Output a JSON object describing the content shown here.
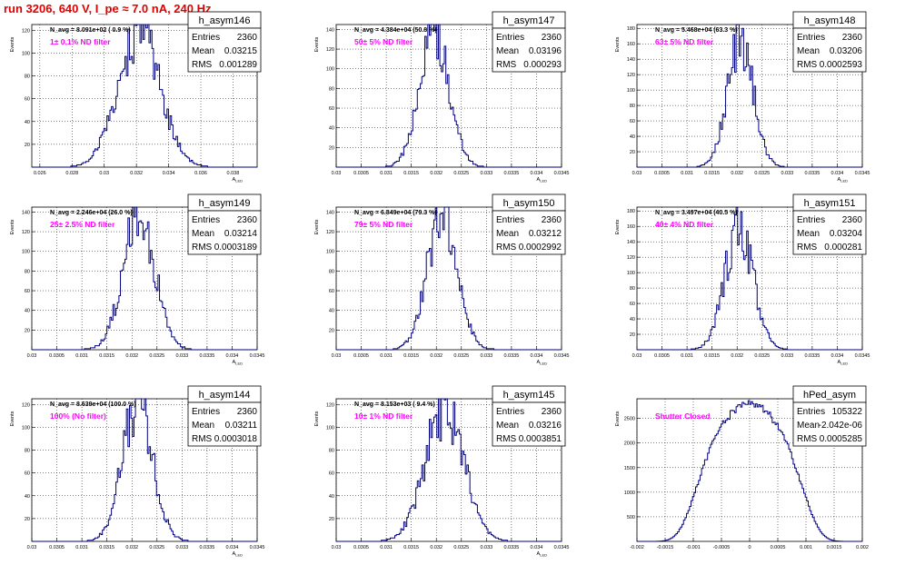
{
  "page_title": "run 3206,   640 V, I_pe ≈ 7.0 nA, 240 Hz",
  "colors": {
    "histogram": "#00007f",
    "annotation": "#ff00ff",
    "title": "#e00000",
    "grid": "#000000"
  },
  "chart_data": [
    {
      "type": "histogram",
      "name": "h_asym146",
      "navg": "N_avg = 8.091e+02 ( 0.9 %)",
      "filter": "1± 0.1% ND filter",
      "stats": {
        "Entries": "2360",
        "Mean": "0.03215",
        "RMS": "0.001289"
      },
      "ylabel": "Events",
      "xlabel": "A_LED",
      "xlim": [
        0.0255,
        0.0395
      ],
      "xticks": [
        "0.026",
        "0.028",
        "0.03",
        "0.032",
        "0.034",
        "0.036",
        "0.038"
      ],
      "ylim": [
        0,
        125
      ],
      "yticks": [
        "20",
        "40",
        "60",
        "80",
        "100",
        "120"
      ],
      "peak": 120,
      "mean": 0.03215,
      "rms": 0.001289,
      "seed": 146
    },
    {
      "type": "histogram",
      "name": "h_asym147",
      "navg": "N_avg = 4.384e+04 (50.8 %)",
      "filter": "50± 5% ND filter",
      "stats": {
        "Entries": "2360",
        "Mean": "0.03196",
        "RMS": "0.000293"
      },
      "ylabel": "Events",
      "xlabel": "A_LED",
      "xlim": [
        0.03,
        0.0345
      ],
      "xticks": [
        "0.03",
        "0.0305",
        "0.031",
        "0.0315",
        "0.032",
        "0.0325",
        "0.033",
        "0.0335",
        "0.034",
        "0.0345"
      ],
      "ylim": [
        0,
        145
      ],
      "yticks": [
        "20",
        "40",
        "60",
        "80",
        "100",
        "120",
        "140"
      ],
      "peak": 138,
      "mean": 0.03196,
      "rms": 0.000293,
      "seed": 147
    },
    {
      "type": "histogram",
      "name": "h_asym148",
      "navg": "N_avg = 5.468e+04 (63.3 %)",
      "filter": "63± 5% ND filter",
      "stats": {
        "Entries": "2360",
        "Mean": "0.03206",
        "RMS": "0.0002593"
      },
      "ylabel": "Events",
      "xlabel": "A_LED",
      "xlim": [
        0.03,
        0.0345
      ],
      "xticks": [
        "0.03",
        "0.0305",
        "0.031",
        "0.0315",
        "0.032",
        "0.0325",
        "0.033",
        "0.0335",
        "0.034",
        "0.0345"
      ],
      "ylim": [
        0,
        185
      ],
      "yticks": [
        "20",
        "40",
        "60",
        "80",
        "100",
        "120",
        "140",
        "160",
        "180"
      ],
      "peak": 165,
      "mean": 0.03206,
      "rms": 0.0002593,
      "seed": 148
    },
    {
      "type": "histogram",
      "name": "h_asym149",
      "navg": "N_avg = 2.246e+04 (26.0 %)",
      "filter": "25± 2.5% ND filter",
      "stats": {
        "Entries": "2360",
        "Mean": "0.03214",
        "RMS": "0.0003189"
      },
      "ylabel": "Events",
      "xlabel": "A_LED",
      "xlim": [
        0.03,
        0.0345
      ],
      "xticks": [
        "0.03",
        "0.0305",
        "0.031",
        "0.0315",
        "0.032",
        "0.0325",
        "0.033",
        "0.0335",
        "0.034",
        "0.0345"
      ],
      "ylim": [
        0,
        145
      ],
      "yticks": [
        "20",
        "40",
        "60",
        "80",
        "100",
        "120",
        "140"
      ],
      "peak": 135,
      "mean": 0.03214,
      "rms": 0.0003189,
      "seed": 149
    },
    {
      "type": "histogram",
      "name": "h_asym150",
      "navg": "N_avg = 6.849e+04 (79.3 %)",
      "filter": "79± 5% ND filter",
      "stats": {
        "Entries": "2360",
        "Mean": "0.03212",
        "RMS": "0.0002992"
      },
      "ylabel": "Events",
      "xlabel": "A_LED",
      "xlim": [
        0.03,
        0.0345
      ],
      "xticks": [
        "0.03",
        "0.0305",
        "0.031",
        "0.0315",
        "0.032",
        "0.0325",
        "0.033",
        "0.0335",
        "0.034",
        "0.0345"
      ],
      "ylim": [
        0,
        145
      ],
      "yticks": [
        "20",
        "40",
        "60",
        "80",
        "100",
        "120",
        "140"
      ],
      "peak": 140,
      "mean": 0.03212,
      "rms": 0.0002992,
      "seed": 150
    },
    {
      "type": "histogram",
      "name": "h_asym151",
      "navg": "N_avg = 3.497e+04 (40.5 %)",
      "filter": "40± 4% ND filter",
      "stats": {
        "Entries": "2360",
        "Mean": "0.03204",
        "RMS": "0.000281"
      },
      "ylabel": "Events",
      "xlabel": "A_LED",
      "xlim": [
        0.03,
        0.0345
      ],
      "xticks": [
        "0.03",
        "0.0305",
        "0.031",
        "0.0315",
        "0.032",
        "0.0325",
        "0.033",
        "0.0335",
        "0.034",
        "0.0345"
      ],
      "ylim": [
        0,
        185
      ],
      "yticks": [
        "20",
        "40",
        "60",
        "80",
        "100",
        "120",
        "140",
        "160",
        "180"
      ],
      "peak": 160,
      "mean": 0.03204,
      "rms": 0.000281,
      "seed": 151
    },
    {
      "type": "histogram",
      "name": "h_asym144",
      "navg": "N_avg = 8.639e+04 (100.0 %)",
      "filter": "100% (No filter)",
      "stats": {
        "Entries": "2360",
        "Mean": "0.03211",
        "RMS": "0.0003018"
      },
      "ylabel": "Events",
      "xlabel": "A_LED",
      "xlim": [
        0.03,
        0.0345
      ],
      "xticks": [
        "0.03",
        "0.0305",
        "0.031",
        "0.0315",
        "0.032",
        "0.0325",
        "0.033",
        "0.0335",
        "0.034",
        "0.0345"
      ],
      "ylim": [
        0,
        125
      ],
      "yticks": [
        "20",
        "40",
        "60",
        "80",
        "100",
        "120"
      ],
      "peak": 120,
      "mean": 0.03211,
      "rms": 0.0003018,
      "seed": 144
    },
    {
      "type": "histogram",
      "name": "h_asym145",
      "navg": "N_avg = 8.153e+03 ( 9.4 %)",
      "filter": "10± 1% ND filter",
      "stats": {
        "Entries": "2360",
        "Mean": "0.03216",
        "RMS": "0.0003851"
      },
      "ylabel": "Events",
      "xlabel": "A_LED",
      "xlim": [
        0.03,
        0.0345
      ],
      "xticks": [
        "0.03",
        "0.0305",
        "0.031",
        "0.0315",
        "0.032",
        "0.0325",
        "0.033",
        "0.0335",
        "0.034",
        "0.0345"
      ],
      "ylim": [
        0,
        125
      ],
      "yticks": [
        "20",
        "40",
        "60",
        "80",
        "100",
        "120"
      ],
      "peak": 115,
      "mean": 0.03216,
      "rms": 0.0003851,
      "seed": 145
    },
    {
      "type": "histogram",
      "name": "hPed_asym",
      "navg": "",
      "filter": "Shutter Closed",
      "stats": {
        "Entries": "105322",
        "Mean": "-2.042e-06",
        "RMS": "0.0005285"
      },
      "ylabel": "Events",
      "xlabel": "",
      "xlim": [
        -0.002,
        0.002
      ],
      "xticks": [
        "-0.002",
        "-0.0015",
        "-0.001",
        "-0.0005",
        "0",
        "0.0005",
        "0.001",
        "0.0015",
        "0.002"
      ],
      "ylim": [
        0,
        2900
      ],
      "yticks": [
        "500",
        "1000",
        "1500",
        "2000",
        "2500"
      ],
      "peak": 2780,
      "mean": -2e-06,
      "rms": 0.0005285,
      "seed": 1,
      "flat": true
    }
  ]
}
